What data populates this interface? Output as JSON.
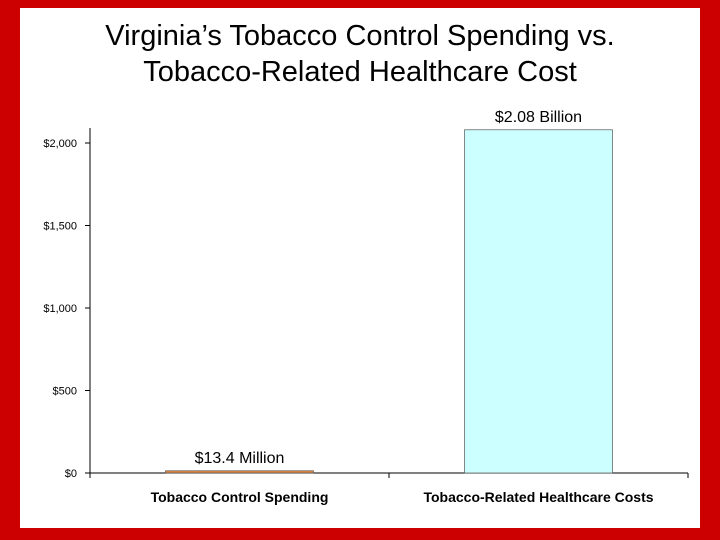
{
  "chart_data": {
    "type": "bar",
    "title_lines": [
      "Virginia’s Tobacco Control Spending vs.",
      "Tobacco-Related Healthcare Cost"
    ],
    "categories": [
      "Tobacco Control Spending",
      "Tobacco-Related Healthcare Costs"
    ],
    "values": [
      13.4,
      2080
    ],
    "data_labels": [
      "$13.4 Million",
      "$2.08 Billion"
    ],
    "yticks": [
      0,
      500,
      1000,
      1500,
      2000
    ],
    "ytick_labels": [
      "$0",
      "$500",
      "$1,000",
      "$1,500",
      "$2,000"
    ],
    "ylim": [
      0,
      2000
    ],
    "grid": false,
    "bar_colors": [
      "#e88a3c",
      "#ccffff"
    ]
  },
  "colors": {
    "frame": "#cc0000",
    "panel": "#ffffff"
  }
}
